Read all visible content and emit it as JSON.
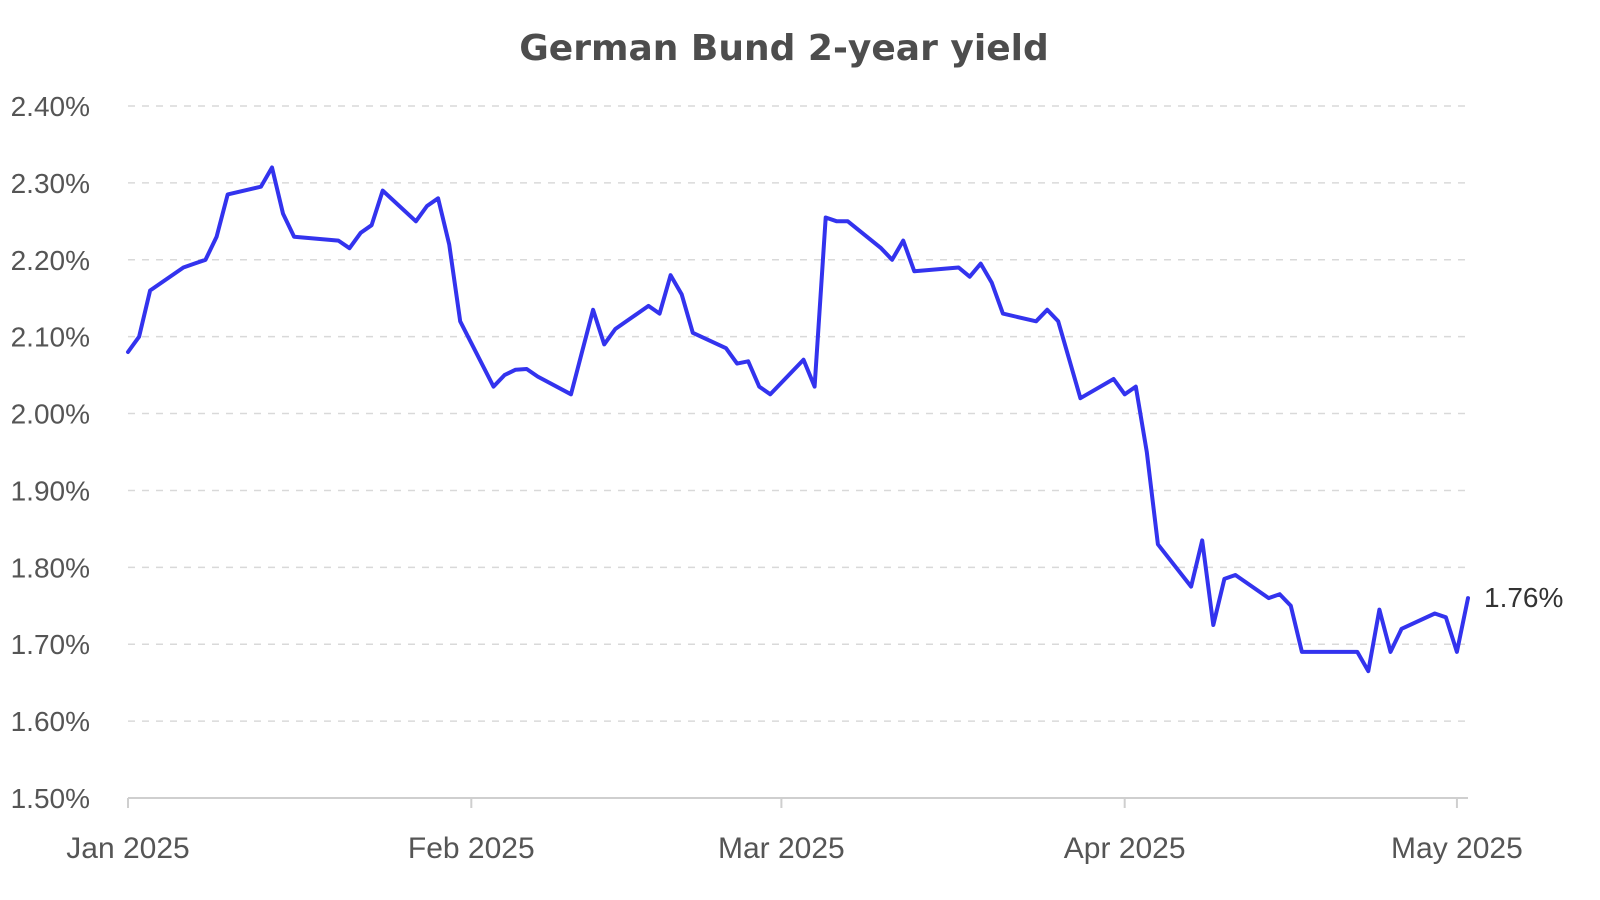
{
  "chart_data": {
    "type": "line",
    "title": "German Bund 2-year yield",
    "xlabel": "",
    "ylabel": "",
    "ylim": [
      1.5,
      2.4
    ],
    "yticks": [
      {
        "value": 2.4,
        "label": "2.40%"
      },
      {
        "value": 2.3,
        "label": "2.30%"
      },
      {
        "value": 2.2,
        "label": "2.20%"
      },
      {
        "value": 2.1,
        "label": "2.10%"
      },
      {
        "value": 2.0,
        "label": "2.00%"
      },
      {
        "value": 1.9,
        "label": "1.90%"
      },
      {
        "value": 1.8,
        "label": "1.80%"
      },
      {
        "value": 1.7,
        "label": "1.70%"
      },
      {
        "value": 1.6,
        "label": "1.60%"
      },
      {
        "value": 1.5,
        "label": "1.50%"
      }
    ],
    "xlim": [
      "2025-01-01",
      "2025-05-02"
    ],
    "xticks": [
      {
        "date": "2025-01-01",
        "label": "Jan 2025"
      },
      {
        "date": "2025-02-01",
        "label": "Feb 2025"
      },
      {
        "date": "2025-03-01",
        "label": "Mar 2025"
      },
      {
        "date": "2025-04-01",
        "label": "Apr 2025"
      },
      {
        "date": "2025-05-01",
        "label": "May 2025"
      }
    ],
    "grid": true,
    "legend": "none",
    "series": [
      {
        "color": "#3333ee",
        "end_label": "1.76%",
        "points": [
          [
            "2025-01-01",
            2.08
          ],
          [
            "2025-01-02",
            2.1
          ],
          [
            "2025-01-03",
            2.16
          ],
          [
            "2025-01-06",
            2.19
          ],
          [
            "2025-01-07",
            2.195
          ],
          [
            "2025-01-08",
            2.2
          ],
          [
            "2025-01-09",
            2.23
          ],
          [
            "2025-01-10",
            2.285
          ],
          [
            "2025-01-13",
            2.295
          ],
          [
            "2025-01-14",
            2.32
          ],
          [
            "2025-01-15",
            2.26
          ],
          [
            "2025-01-16",
            2.23
          ],
          [
            "2025-01-20",
            2.225
          ],
          [
            "2025-01-21",
            2.215
          ],
          [
            "2025-01-22",
            2.235
          ],
          [
            "2025-01-23",
            2.245
          ],
          [
            "2025-01-24",
            2.29
          ],
          [
            "2025-01-27",
            2.25
          ],
          [
            "2025-01-28",
            2.27
          ],
          [
            "2025-01-29",
            2.28
          ],
          [
            "2025-01-30",
            2.22
          ],
          [
            "2025-01-31",
            2.12
          ],
          [
            "2025-02-03",
            2.035
          ],
          [
            "2025-02-04",
            2.05
          ],
          [
            "2025-02-05",
            2.057
          ],
          [
            "2025-02-06",
            2.058
          ],
          [
            "2025-02-07",
            2.048
          ],
          [
            "2025-02-10",
            2.025
          ],
          [
            "2025-02-11",
            2.08
          ],
          [
            "2025-02-12",
            2.135
          ],
          [
            "2025-02-13",
            2.09
          ],
          [
            "2025-02-14",
            2.11
          ],
          [
            "2025-02-17",
            2.14
          ],
          [
            "2025-02-18",
            2.13
          ],
          [
            "2025-02-19",
            2.18
          ],
          [
            "2025-02-20",
            2.155
          ],
          [
            "2025-02-21",
            2.105
          ],
          [
            "2025-02-24",
            2.085
          ],
          [
            "2025-02-25",
            2.065
          ],
          [
            "2025-02-26",
            2.068
          ],
          [
            "2025-02-27",
            2.035
          ],
          [
            "2025-02-28",
            2.025
          ],
          [
            "2025-03-03",
            2.07
          ],
          [
            "2025-03-04",
            2.035
          ],
          [
            "2025-03-05",
            2.255
          ],
          [
            "2025-03-06",
            2.25
          ],
          [
            "2025-03-07",
            2.25
          ],
          [
            "2025-03-10",
            2.215
          ],
          [
            "2025-03-11",
            2.2
          ],
          [
            "2025-03-12",
            2.225
          ],
          [
            "2025-03-13",
            2.185
          ],
          [
            "2025-03-17",
            2.19
          ],
          [
            "2025-03-18",
            2.178
          ],
          [
            "2025-03-19",
            2.195
          ],
          [
            "2025-03-20",
            2.17
          ],
          [
            "2025-03-21",
            2.13
          ],
          [
            "2025-03-24",
            2.12
          ],
          [
            "2025-03-25",
            2.135
          ],
          [
            "2025-03-26",
            2.12
          ],
          [
            "2025-03-27",
            2.07
          ],
          [
            "2025-03-28",
            2.02
          ],
          [
            "2025-03-31",
            2.045
          ],
          [
            "2025-04-01",
            2.025
          ],
          [
            "2025-04-02",
            2.035
          ],
          [
            "2025-04-03",
            1.95
          ],
          [
            "2025-04-04",
            1.83
          ],
          [
            "2025-04-07",
            1.775
          ],
          [
            "2025-04-08",
            1.835
          ],
          [
            "2025-04-09",
            1.725
          ],
          [
            "2025-04-10",
            1.785
          ],
          [
            "2025-04-11",
            1.79
          ],
          [
            "2025-04-14",
            1.76
          ],
          [
            "2025-04-15",
            1.765
          ],
          [
            "2025-04-16",
            1.75
          ],
          [
            "2025-04-17",
            1.69
          ],
          [
            "2025-04-22",
            1.69
          ],
          [
            "2025-04-23",
            1.665
          ],
          [
            "2025-04-24",
            1.745
          ],
          [
            "2025-04-25",
            1.69
          ],
          [
            "2025-04-26",
            1.72
          ],
          [
            "2025-04-29",
            1.74
          ],
          [
            "2025-04-30",
            1.735
          ],
          [
            "2025-05-01",
            1.69
          ],
          [
            "2025-05-02",
            1.76
          ]
        ]
      }
    ]
  }
}
